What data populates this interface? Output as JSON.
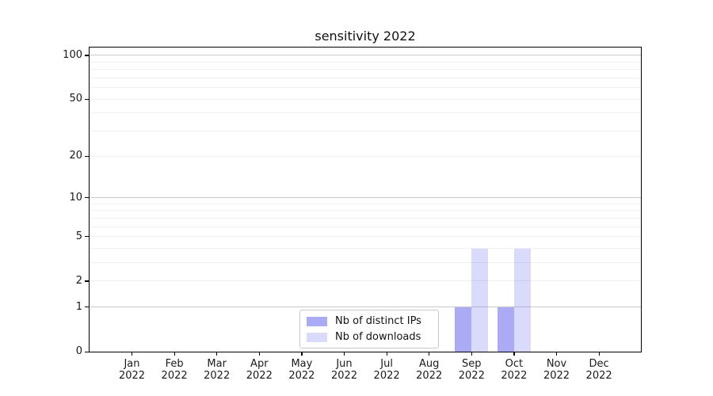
{
  "chart_data": {
    "type": "bar",
    "title": "sensitivity 2022",
    "categories": [
      "Jan",
      "Feb",
      "Mar",
      "Apr",
      "May",
      "Jun",
      "Jul",
      "Aug",
      "Sep",
      "Oct",
      "Nov",
      "Dec"
    ],
    "category_year": "2022",
    "series": [
      {
        "name": "Nb of distinct IPs",
        "color": "rgba(85,85,235,0.5)",
        "color_on_white": "#aaaaf5",
        "values": [
          0,
          0,
          0,
          0,
          0,
          0,
          0,
          0,
          1,
          1,
          0,
          0
        ]
      },
      {
        "name": "Nb of downloads",
        "color": "rgba(85,85,235,0.22)",
        "color_on_white": "#dcdcf8",
        "values": [
          0,
          0,
          0,
          0,
          0,
          0,
          0,
          0,
          4,
          4,
          0,
          0
        ]
      }
    ],
    "xlabel": "",
    "ylabel": "",
    "yaxis": {
      "scale": "log10(value+1)",
      "tick_values": [
        0,
        1,
        2,
        5,
        10,
        20,
        50,
        100
      ],
      "max": 113,
      "major_gridlines": [
        1,
        10,
        100
      ],
      "minor_gridlines": [
        2,
        3,
        4,
        5,
        6,
        7,
        8,
        9,
        20,
        30,
        40,
        50,
        60,
        70,
        80,
        90
      ]
    },
    "legend_location": "inside plot, lower center",
    "colors": {
      "spine": "#000000",
      "major_grid": "#c9c9c9",
      "minor_grid": "#efefef",
      "text": "#1a1a1a",
      "background": "#ffffff"
    },
    "grid": true
  }
}
